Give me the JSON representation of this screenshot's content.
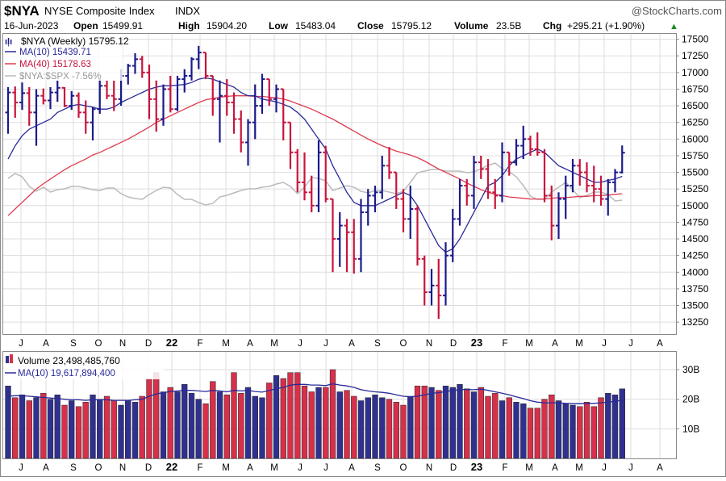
{
  "header": {
    "symbol": "$NYA",
    "name": "NYSE Composite Index",
    "exchange": "INDX",
    "watermark": "@StockCharts.com",
    "date": "16-Jun-2023",
    "open_label": "Open",
    "open_value": "15499.91",
    "high_label": "High",
    "high_value": "15904.20",
    "low_label": "Low",
    "low_value": "15483.04",
    "close_label": "Close",
    "close_value": "15795.12",
    "volume_label": "Volume",
    "volume_value": "23.5B",
    "chg_label": "Chg",
    "chg_value": "+295.21 (+1.90%)",
    "change_arrow": "▲"
  },
  "price_legend": {
    "main": "$NYA (Weekly) 15795.12",
    "ma10": "MA(10) 15439.71",
    "ma40": "MA(40) 15178.63",
    "relative": "$NYA:$SPX -7.56%"
  },
  "volume_legend": {
    "main": "Volume 23,498,485,760",
    "ma10": "MA(10) 19,617,894,400"
  },
  "colors": {
    "up": "#1a1a8c",
    "down": "#c8143c",
    "ma10": "#2a2a9a",
    "ma40": "#e03a50",
    "relative": "#bbbbbb",
    "grid": "#dddddd",
    "vol_up": "#303090",
    "vol_down": "#d6304a"
  },
  "chart_data": [
    {
      "type": "candlestick",
      "title": "$NYA NYSE Composite Index INDX",
      "period": "Weekly",
      "y_axis_ticks": [
        13250,
        13500,
        13750,
        14000,
        14250,
        14500,
        14750,
        15000,
        15250,
        15500,
        15750,
        16000,
        16250,
        16500,
        16750,
        17000,
        17250,
        17500
      ],
      "ylim": [
        13070,
        17580
      ],
      "x_axis_labels": [
        "J",
        "A",
        "S",
        "O",
        "N",
        "D",
        "22",
        "F",
        "M",
        "A",
        "M",
        "J",
        "J",
        "A",
        "S",
        "O",
        "N",
        "D",
        "23",
        "F",
        "M",
        "A",
        "M",
        "J",
        "J",
        "A"
      ],
      "bars": [
        {
          "o": 16400,
          "h": 16780,
          "l": 16080,
          "c": 16700
        },
        {
          "o": 16700,
          "h": 16790,
          "l": 16320,
          "c": 16550
        },
        {
          "o": 16550,
          "h": 16850,
          "l": 16440,
          "c": 16690
        },
        {
          "o": 16690,
          "h": 16780,
          "l": 16200,
          "c": 16400
        },
        {
          "o": 16400,
          "h": 16750,
          "l": 15900,
          "c": 16650
        },
        {
          "o": 16650,
          "h": 16760,
          "l": 16520,
          "c": 16580
        },
        {
          "o": 16580,
          "h": 16780,
          "l": 16450,
          "c": 16700
        },
        {
          "o": 16700,
          "h": 16880,
          "l": 16560,
          "c": 16770
        },
        {
          "o": 16770,
          "h": 16780,
          "l": 16480,
          "c": 16500
        },
        {
          "o": 16500,
          "h": 16720,
          "l": 16440,
          "c": 16650
        },
        {
          "o": 16650,
          "h": 16700,
          "l": 16320,
          "c": 16400
        },
        {
          "o": 16400,
          "h": 16580,
          "l": 16080,
          "c": 16250
        },
        {
          "o": 16250,
          "h": 16480,
          "l": 15980,
          "c": 16450
        },
        {
          "o": 16450,
          "h": 16900,
          "l": 16380,
          "c": 16800
        },
        {
          "o": 16800,
          "h": 16880,
          "l": 16600,
          "c": 16650
        },
        {
          "o": 16650,
          "h": 16880,
          "l": 16420,
          "c": 16600
        },
        {
          "o": 16600,
          "h": 17050,
          "l": 16500,
          "c": 16950
        },
        {
          "o": 16950,
          "h": 17130,
          "l": 16820,
          "c": 17100
        },
        {
          "o": 17100,
          "h": 17290,
          "l": 16980,
          "c": 17200
        },
        {
          "o": 17200,
          "h": 17250,
          "l": 16920,
          "c": 17000
        },
        {
          "o": 17000,
          "h": 17120,
          "l": 16300,
          "c": 16600
        },
        {
          "o": 16600,
          "h": 16880,
          "l": 16110,
          "c": 16300
        },
        {
          "o": 16300,
          "h": 16820,
          "l": 16200,
          "c": 16750
        },
        {
          "o": 16750,
          "h": 16950,
          "l": 16400,
          "c": 16450
        },
        {
          "o": 16450,
          "h": 16950,
          "l": 16420,
          "c": 16900
        },
        {
          "o": 16900,
          "h": 17050,
          "l": 16700,
          "c": 16950
        },
        {
          "o": 16950,
          "h": 17230,
          "l": 16880,
          "c": 17200
        },
        {
          "o": 17200,
          "h": 17400,
          "l": 17050,
          "c": 17300
        },
        {
          "o": 17300,
          "h": 17300,
          "l": 16900,
          "c": 16950
        },
        {
          "o": 16950,
          "h": 16950,
          "l": 16350,
          "c": 16600
        },
        {
          "o": 16600,
          "h": 16880,
          "l": 15950,
          "c": 16650
        },
        {
          "o": 16650,
          "h": 16900,
          "l": 16350,
          "c": 16550
        },
        {
          "o": 16550,
          "h": 16700,
          "l": 16080,
          "c": 16300
        },
        {
          "o": 16300,
          "h": 16430,
          "l": 15800,
          "c": 15950
        },
        {
          "o": 15950,
          "h": 16300,
          "l": 15600,
          "c": 16250
        },
        {
          "o": 16250,
          "h": 16820,
          "l": 16000,
          "c": 16500
        },
        {
          "o": 16500,
          "h": 16980,
          "l": 16380,
          "c": 16900
        },
        {
          "o": 16900,
          "h": 16900,
          "l": 16500,
          "c": 16600
        },
        {
          "o": 16600,
          "h": 16820,
          "l": 16400,
          "c": 16750
        },
        {
          "o": 16750,
          "h": 16750,
          "l": 15980,
          "c": 16250
        },
        {
          "o": 16250,
          "h": 16250,
          "l": 15550,
          "c": 15800
        },
        {
          "o": 15800,
          "h": 15850,
          "l": 15200,
          "c": 15350
        },
        {
          "o": 15350,
          "h": 15800,
          "l": 15080,
          "c": 15200
        },
        {
          "o": 15200,
          "h": 15450,
          "l": 14900,
          "c": 15000
        },
        {
          "o": 15000,
          "h": 15980,
          "l": 14900,
          "c": 15800
        },
        {
          "o": 15800,
          "h": 15900,
          "l": 15050,
          "c": 15100
        },
        {
          "o": 15100,
          "h": 15100,
          "l": 14000,
          "c": 14500
        },
        {
          "o": 14500,
          "h": 14900,
          "l": 14080,
          "c": 14700
        },
        {
          "o": 14700,
          "h": 14800,
          "l": 14000,
          "c": 14600
        },
        {
          "o": 14600,
          "h": 14800,
          "l": 13980,
          "c": 14200
        },
        {
          "o": 14200,
          "h": 15100,
          "l": 14000,
          "c": 14900
        },
        {
          "o": 14900,
          "h": 15250,
          "l": 14700,
          "c": 15150
        },
        {
          "o": 15150,
          "h": 15300,
          "l": 14900,
          "c": 15200
        },
        {
          "o": 15200,
          "h": 15750,
          "l": 15100,
          "c": 15600
        },
        {
          "o": 15600,
          "h": 15880,
          "l": 15400,
          "c": 15500
        },
        {
          "o": 15500,
          "h": 15500,
          "l": 14950,
          "c": 15100
        },
        {
          "o": 15100,
          "h": 15250,
          "l": 14600,
          "c": 14800
        },
        {
          "o": 14800,
          "h": 15300,
          "l": 14500,
          "c": 14950
        },
        {
          "o": 14950,
          "h": 15000,
          "l": 14100,
          "c": 14200
        },
        {
          "o": 14200,
          "h": 14250,
          "l": 13500,
          "c": 13700
        },
        {
          "o": 13700,
          "h": 14050,
          "l": 13500,
          "c": 13800
        },
        {
          "o": 13800,
          "h": 14200,
          "l": 13300,
          "c": 13650
        },
        {
          "o": 13650,
          "h": 14450,
          "l": 13500,
          "c": 14250
        },
        {
          "o": 14250,
          "h": 14950,
          "l": 14150,
          "c": 14800
        },
        {
          "o": 14800,
          "h": 15400,
          "l": 14700,
          "c": 15300
        },
        {
          "o": 15300,
          "h": 15400,
          "l": 15000,
          "c": 15150
        },
        {
          "o": 15150,
          "h": 15750,
          "l": 14950,
          "c": 15650
        },
        {
          "o": 15650,
          "h": 15750,
          "l": 15400,
          "c": 15550
        },
        {
          "o": 15550,
          "h": 15700,
          "l": 15100,
          "c": 15200
        },
        {
          "o": 15200,
          "h": 15400,
          "l": 14950,
          "c": 15150
        },
        {
          "o": 15150,
          "h": 15950,
          "l": 15050,
          "c": 15800
        },
        {
          "o": 15800,
          "h": 15800,
          "l": 15450,
          "c": 15650
        },
        {
          "o": 15650,
          "h": 16000,
          "l": 15600,
          "c": 15900
        },
        {
          "o": 15900,
          "h": 16200,
          "l": 15700,
          "c": 16000
        },
        {
          "o": 16000,
          "h": 16050,
          "l": 15750,
          "c": 15850
        },
        {
          "o": 15850,
          "h": 16100,
          "l": 15750,
          "c": 15800
        },
        {
          "o": 15800,
          "h": 15850,
          "l": 15050,
          "c": 15150
        },
        {
          "o": 15150,
          "h": 15300,
          "l": 14480,
          "c": 14700
        },
        {
          "o": 14700,
          "h": 15200,
          "l": 14500,
          "c": 15100
        },
        {
          "o": 15100,
          "h": 15450,
          "l": 14800,
          "c": 15300
        },
        {
          "o": 15300,
          "h": 15700,
          "l": 15200,
          "c": 15600
        },
        {
          "o": 15600,
          "h": 15700,
          "l": 15300,
          "c": 15500
        },
        {
          "o": 15500,
          "h": 15650,
          "l": 15200,
          "c": 15300
        },
        {
          "o": 15300,
          "h": 15600,
          "l": 15050,
          "c": 15250
        },
        {
          "o": 15250,
          "h": 15450,
          "l": 15000,
          "c": 15100
        },
        {
          "o": 15100,
          "h": 15400,
          "l": 14850,
          "c": 15350
        },
        {
          "o": 15350,
          "h": 15550,
          "l": 15200,
          "c": 15500
        },
        {
          "o": 15500,
          "h": 15904,
          "l": 15483,
          "c": 15795
        }
      ],
      "ma10": [
        15700,
        15900,
        16050,
        16150,
        16200,
        16250,
        16300,
        16400,
        16450,
        16500,
        16520,
        16500,
        16480,
        16450,
        16450,
        16480,
        16550,
        16600,
        16650,
        16700,
        16750,
        16780,
        16800,
        16800,
        16810,
        16820,
        16850,
        16900,
        16920,
        16900,
        16860,
        16820,
        16780,
        16700,
        16650,
        16650,
        16600,
        16580,
        16560,
        16520,
        16480,
        16400,
        16300,
        16150,
        16000,
        15850,
        15600,
        15400,
        15200,
        15050,
        15000,
        15000,
        15000,
        15050,
        15100,
        15150,
        15200,
        15150,
        15000,
        14800,
        14600,
        14400,
        14300,
        14350,
        14500,
        14700,
        14900,
        15100,
        15300,
        15350,
        15450,
        15600,
        15700,
        15750,
        15800,
        15850,
        15800,
        15700,
        15600,
        15550,
        15500,
        15450,
        15400,
        15350,
        15350,
        15380,
        15400,
        15440
      ],
      "ma40": [
        14850,
        14950,
        15050,
        15150,
        15250,
        15330,
        15400,
        15470,
        15540,
        15600,
        15650,
        15700,
        15760,
        15800,
        15850,
        15900,
        15950,
        16000,
        16060,
        16120,
        16180,
        16250,
        16300,
        16350,
        16400,
        16450,
        16500,
        16550,
        16590,
        16610,
        16630,
        16640,
        16650,
        16650,
        16650,
        16640,
        16640,
        16630,
        16620,
        16600,
        16570,
        16530,
        16490,
        16450,
        16400,
        16350,
        16300,
        16240,
        16180,
        16120,
        16060,
        16000,
        15950,
        15900,
        15860,
        15820,
        15790,
        15760,
        15720,
        15670,
        15610,
        15550,
        15500,
        15450,
        15400,
        15340,
        15290,
        15240,
        15200,
        15170,
        15150,
        15130,
        15120,
        15110,
        15100,
        15100,
        15100,
        15110,
        15120,
        15120,
        15130,
        15140,
        15140,
        15150,
        15150,
        15160,
        15170,
        15180
      ],
      "relative_line_note": "$NYA:$SPX ratio line (gray, unitless overlay)"
    },
    {
      "type": "bar",
      "title": "Volume",
      "y_axis_ticks": [
        "10B",
        "20B",
        "30B"
      ],
      "ylim_billions": [
        0,
        36
      ],
      "volumes_billions": [
        24.5,
        20.5,
        21.5,
        19.5,
        20.5,
        22.0,
        20.0,
        21.5,
        18.0,
        19.5,
        17.5,
        19.0,
        21.5,
        20.0,
        21.0,
        19.5,
        18.0,
        19.5,
        19.0,
        21.0,
        27.0,
        29.0,
        22.5,
        24.0,
        22.5,
        25.0,
        22.0,
        20.0,
        18.5,
        26.0,
        22.5,
        21.5,
        29.0,
        22.0,
        24.0,
        21.0,
        20.5,
        25.5,
        28.0,
        27.0,
        29.0,
        29.0,
        24.5,
        22.5,
        24.0,
        24.0,
        30.0,
        22.5,
        23.0,
        21.0,
        19.5,
        20.5,
        21.5,
        20.5,
        20.0,
        19.0,
        18.0,
        21.0,
        24.5,
        24.5,
        24.0,
        23.0,
        24.5,
        24.0,
        25.0,
        23.5,
        22.5,
        24.0,
        21.0,
        22.0,
        19.5,
        20.5,
        19.0,
        18.5,
        17.0,
        17.0,
        20.0,
        21.5,
        19.5,
        18.5,
        18.0,
        17.5,
        19.0,
        17.5,
        20.5,
        22.0,
        21.5,
        23.5
      ],
      "volume_ma10_billions": [
        21.0,
        21.2,
        21.2,
        21.0,
        20.8,
        20.6,
        20.4,
        20.2,
        20.0,
        19.8,
        19.8,
        19.6,
        19.8,
        19.8,
        19.8,
        19.6,
        19.6,
        19.6,
        19.8,
        20.0,
        21.0,
        21.8,
        22.2,
        22.6,
        22.8,
        23.0,
        23.0,
        22.8,
        22.6,
        23.0,
        22.8,
        22.5,
        23.0,
        22.8,
        23.0,
        22.6,
        22.4,
        23.0,
        23.5,
        24.0,
        24.8,
        25.0,
        25.0,
        24.8,
        24.8,
        24.6,
        25.2,
        24.8,
        24.5,
        24.0,
        23.2,
        22.8,
        22.5,
        22.3,
        22.0,
        21.5,
        21.0,
        20.8,
        21.0,
        21.5,
        22.0,
        22.2,
        22.6,
        23.0,
        23.2,
        23.3,
        23.2,
        23.4,
        23.0,
        22.5,
        22.0,
        21.5,
        20.8,
        20.2,
        19.5,
        19.0,
        18.8,
        18.8,
        18.8,
        18.6,
        18.5,
        18.5,
        18.6,
        18.6,
        18.8,
        19.0,
        19.3,
        19.6
      ]
    }
  ]
}
